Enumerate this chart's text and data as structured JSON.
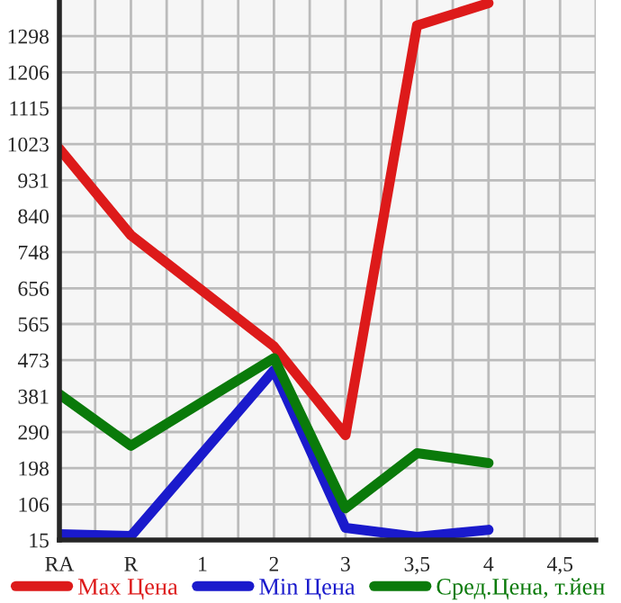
{
  "chart_data": {
    "type": "line",
    "categories": [
      "RA",
      "R",
      "1",
      "2",
      "3",
      "3,5",
      "4",
      "4,5"
    ],
    "ylim": [
      15,
      1390
    ],
    "yticks": [
      15,
      106,
      198,
      290,
      381,
      473,
      565,
      656,
      748,
      840,
      931,
      1023,
      1115,
      1206,
      1298
    ],
    "grid": true,
    "legend": "bottom",
    "marker": "none",
    "line_style": "solid",
    "series": [
      {
        "name": "Max Цена",
        "color": "#dd1a1a",
        "values": [
          1011,
          791,
          null,
          508,
          282,
          1325,
          1382,
          null
        ]
      },
      {
        "name": "Min Цена",
        "color": "#1a1acc",
        "values": [
          30,
          25,
          null,
          447,
          46,
          23,
          41,
          null
        ]
      },
      {
        "name": "Сред.Цена, т.йен",
        "color": "#0a7a0a",
        "values": [
          386,
          255,
          null,
          478,
          96,
          236,
          211,
          null
        ]
      }
    ]
  }
}
